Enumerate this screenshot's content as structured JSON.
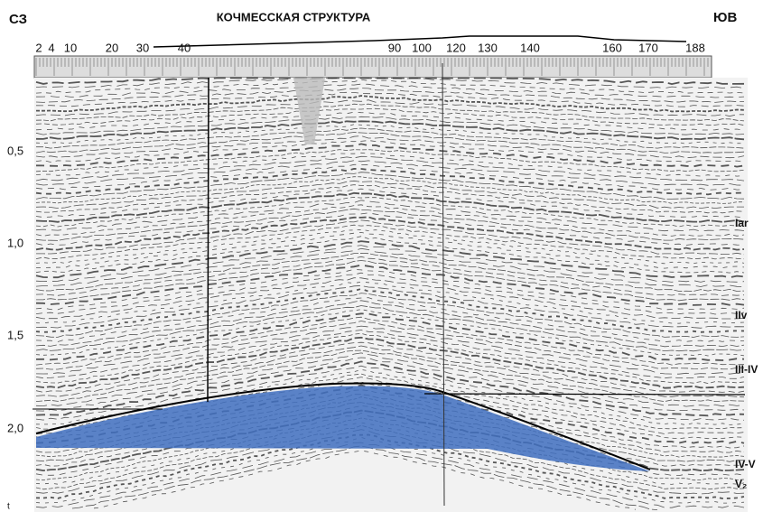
{
  "header": {
    "left": "СЗ",
    "title": "КОЧМЕССКАЯ СТРУКТУРА",
    "right": "ЮВ"
  },
  "top_scale": {
    "labels": [
      "2",
      "4",
      "10",
      "20",
      "30",
      "40",
      "90",
      "100",
      "120",
      "130",
      "140",
      "160",
      "170",
      "188"
    ]
  },
  "time_axis": {
    "labels": [
      "0,5",
      "1,0",
      "1,5",
      "2,0"
    ],
    "unit": "t"
  },
  "horizons": {
    "labels": [
      "Iar",
      "IIv",
      "III-IV",
      "IV-V",
      "V₂"
    ]
  }
}
